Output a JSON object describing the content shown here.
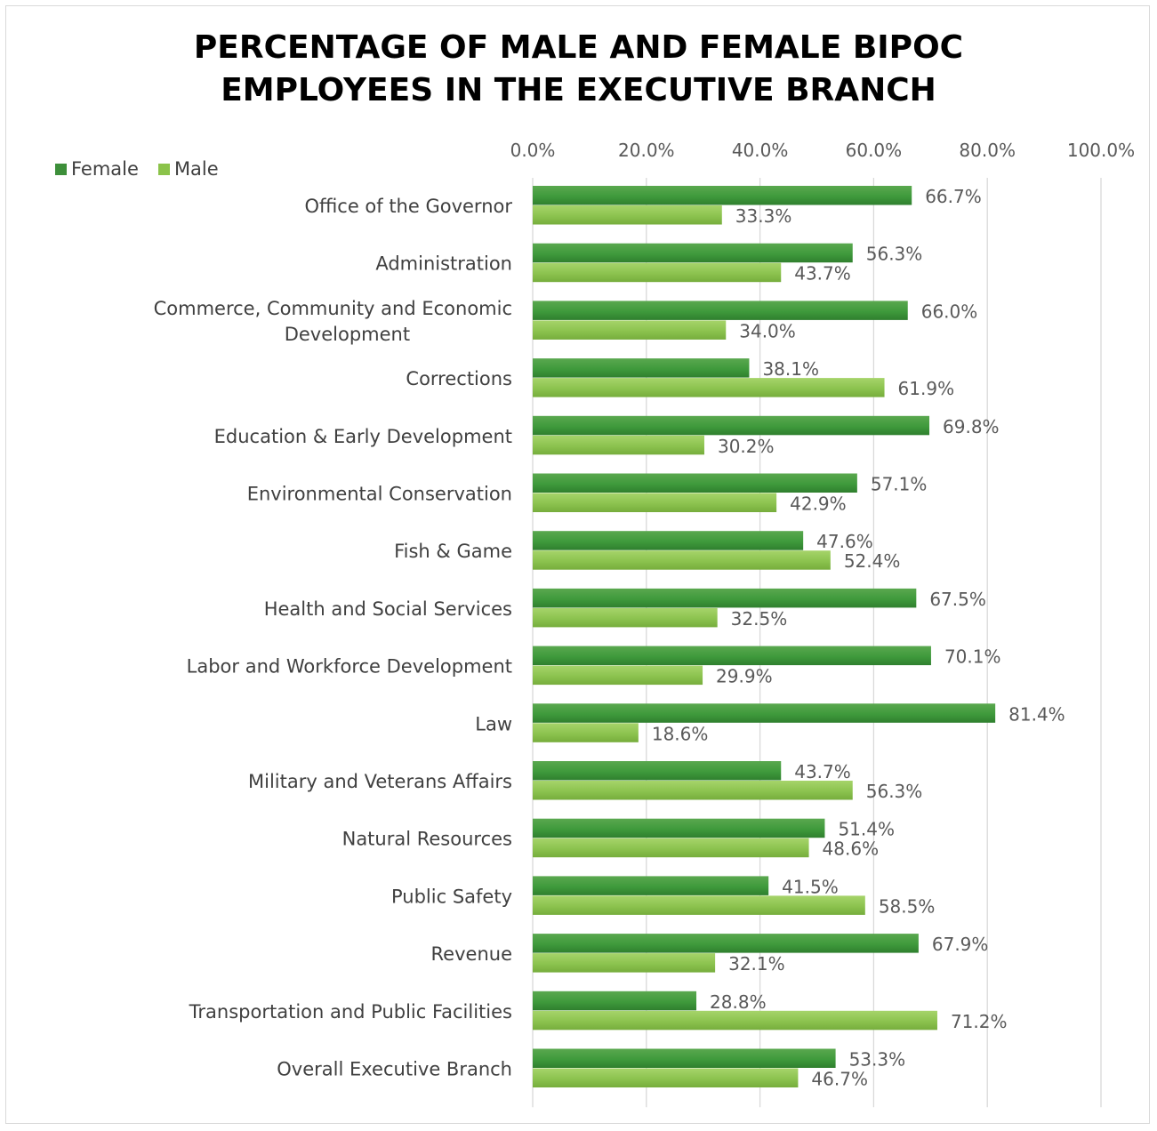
{
  "chart_data": {
    "type": "bar",
    "orientation": "horizontal",
    "title_lines": [
      "PERCENTAGE OF MALE AND FEMALE BIPOC",
      "EMPLOYEES IN THE EXECUTIVE BRANCH"
    ],
    "xlim": [
      0,
      100
    ],
    "x_ticks": [
      "0.0%",
      "20.0%",
      "40.0%",
      "60.0%",
      "80.0%",
      "100.0%"
    ],
    "x_axis_position": "top",
    "grid": true,
    "legend_position": "top-left",
    "categories": [
      "Office of the Governor",
      "Administration",
      "Commerce, Community and Economic Development",
      "Corrections",
      "Education & Early Development",
      "Environmental Conservation",
      "Fish & Game",
      "Health and Social Services",
      "Labor and Workforce Development",
      "Law",
      "Military and Veterans Affairs",
      "Natural Resources",
      "Public Safety",
      "Revenue",
      "Transportation and Public Facilities",
      "Overall Executive Branch"
    ],
    "category_label_lines": [
      [
        "Office of the Governor"
      ],
      [
        "Administration"
      ],
      [
        "Commerce, Community and Economic",
        "Development"
      ],
      [
        "Corrections"
      ],
      [
        "Education & Early Development"
      ],
      [
        "Environmental Conservation"
      ],
      [
        "Fish & Game"
      ],
      [
        "Health and Social Services"
      ],
      [
        "Labor and Workforce Development"
      ],
      [
        "Law"
      ],
      [
        "Military and Veterans Affairs"
      ],
      [
        "Natural Resources"
      ],
      [
        "Public Safety"
      ],
      [
        "Revenue"
      ],
      [
        "Transportation and Public Facilities"
      ],
      [
        "Overall Executive Branch"
      ]
    ],
    "series": [
      {
        "name": "Female",
        "color": "#3d8f3a",
        "values": [
          66.7,
          56.3,
          66.0,
          38.1,
          69.8,
          57.1,
          47.6,
          67.5,
          70.1,
          81.4,
          43.7,
          51.4,
          41.5,
          67.9,
          28.8,
          53.3
        ],
        "labels": [
          "66.7%",
          "56.3%",
          "66.0%",
          "38.1%",
          "69.8%",
          "57.1%",
          "47.6%",
          "67.5%",
          "70.1%",
          "81.4%",
          "43.7%",
          "51.4%",
          "41.5%",
          "67.9%",
          "28.8%",
          "53.3%"
        ]
      },
      {
        "name": "Male",
        "color": "#8bc34a",
        "values": [
          33.3,
          43.7,
          34.0,
          61.9,
          30.2,
          42.9,
          52.4,
          32.5,
          29.9,
          18.6,
          56.3,
          48.6,
          58.5,
          32.1,
          71.2,
          46.7
        ],
        "labels": [
          "33.3%",
          "43.7%",
          "34.0%",
          "61.9%",
          "30.2%",
          "42.9%",
          "52.4%",
          "32.5%",
          "29.9%",
          "18.6%",
          "56.3%",
          "48.6%",
          "58.5%",
          "32.1%",
          "71.2%",
          "46.7%"
        ]
      }
    ]
  }
}
